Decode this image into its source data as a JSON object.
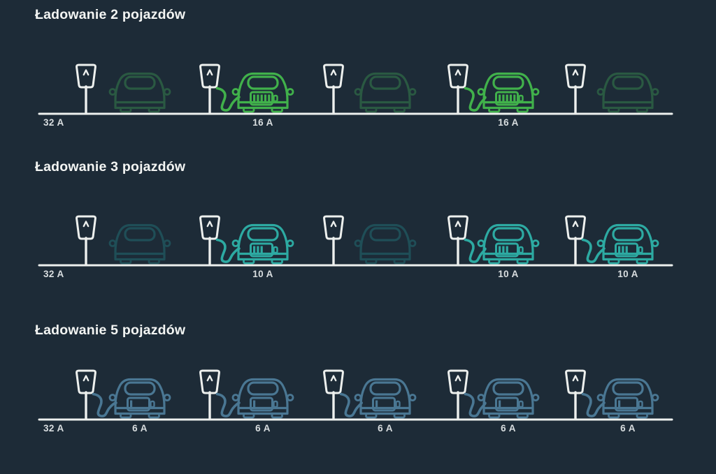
{
  "page": {
    "background": "#1d2b37"
  },
  "colors": {
    "structure_white": "#edf0ee",
    "label_text": "#d9dee0",
    "title_text": "#f3f5f3"
  },
  "sections": [
    {
      "title": "Ładowanie 2 pojazdów",
      "source_label": "32 A",
      "charging_color": "#41b14b",
      "idle_color": "#2a5942",
      "battery_bars": 5,
      "slots": [
        {
          "state": "idle",
          "label": ""
        },
        {
          "state": "charging",
          "label": "16 A"
        },
        {
          "state": "idle",
          "label": ""
        },
        {
          "state": "charging",
          "label": "16 A"
        },
        {
          "state": "idle",
          "label": ""
        }
      ]
    },
    {
      "title": "Ładowanie 3 pojazdów",
      "source_label": "32 A",
      "charging_color": "#2daaa2",
      "idle_color": "#1f4e57",
      "battery_bars": 3,
      "slots": [
        {
          "state": "idle",
          "label": ""
        },
        {
          "state": "charging",
          "label": "10 A"
        },
        {
          "state": "idle",
          "label": ""
        },
        {
          "state": "charging",
          "label": "10 A"
        },
        {
          "state": "charging",
          "label": "10 A"
        }
      ]
    },
    {
      "title": "Ładowanie 5 pojazdów",
      "source_label": "32 A",
      "charging_color": "#4a7793",
      "idle_color": "#4a7793",
      "battery_bars": 1,
      "slots": [
        {
          "state": "charging",
          "label": "6 A"
        },
        {
          "state": "charging",
          "label": "6 A"
        },
        {
          "state": "charging",
          "label": "6 A"
        },
        {
          "state": "charging",
          "label": "6 A"
        },
        {
          "state": "charging",
          "label": "6 A"
        }
      ]
    }
  ]
}
